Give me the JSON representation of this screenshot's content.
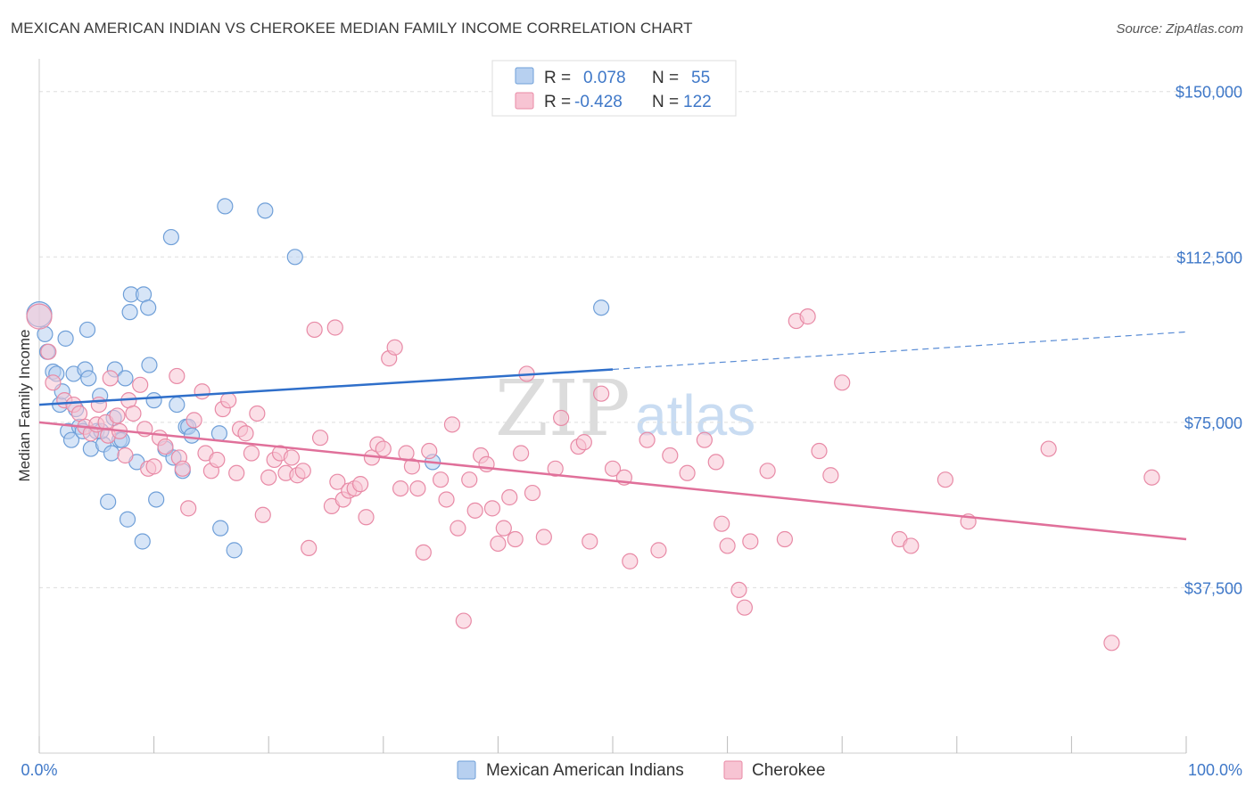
{
  "title": "MEXICAN AMERICAN INDIAN VS CHEROKEE MEDIAN FAMILY INCOME CORRELATION CHART",
  "source": "Source: ZipAtlas.com",
  "watermark": {
    "zip": "ZIP",
    "atlas": "atlas"
  },
  "colors": {
    "blue_fill": "#b7d0f0",
    "blue_stroke": "#6f9fd8",
    "blue_line": "#2f6fca",
    "pink_fill": "#f7c4d3",
    "pink_stroke": "#e88aa6",
    "pink_line": "#e0709a",
    "grid": "#dddddd",
    "axis_text": "#3f78c8"
  },
  "legend": {
    "r_label": "R =",
    "n_label": "N =",
    "blue": {
      "r": "0.078",
      "n": "55"
    },
    "pink": {
      "r": "-0.428",
      "n": "122"
    }
  },
  "chart_data": {
    "type": "scatter",
    "title": "MEXICAN AMERICAN INDIAN VS CHEROKEE MEDIAN FAMILY INCOME CORRELATION CHART",
    "xlabel": "",
    "ylabel": "Median Family Income",
    "xlim": [
      0,
      100
    ],
    "ylim": [
      0,
      155000
    ],
    "x_tick_labels": [
      "0.0%",
      "100.0%"
    ],
    "y_ticks": [
      37500,
      75000,
      112500,
      150000
    ],
    "y_tick_labels": [
      "$37,500",
      "$75,000",
      "$112,500",
      "$150,000"
    ],
    "series": [
      {
        "name": "Mexican American Indians",
        "color": "blue",
        "trend": {
          "x0": 0,
          "y0": 79000,
          "x1": 50,
          "y1": 87000,
          "dash_to_x": 100,
          "dash_to_y": 95500
        },
        "points": [
          [
            0,
            99500
          ],
          [
            0.5,
            95000
          ],
          [
            0.7,
            91000
          ],
          [
            1.2,
            86500
          ],
          [
            1.5,
            86000
          ],
          [
            1.8,
            79000
          ],
          [
            2.0,
            82000
          ],
          [
            2.3,
            94000
          ],
          [
            2.5,
            73000
          ],
          [
            2.8,
            71000
          ],
          [
            3.0,
            86000
          ],
          [
            3.2,
            78000
          ],
          [
            3.5,
            74000
          ],
          [
            3.8,
            73000
          ],
          [
            4.0,
            87000
          ],
          [
            4.2,
            96000
          ],
          [
            4.3,
            85000
          ],
          [
            4.5,
            69000
          ],
          [
            5.0,
            73000
          ],
          [
            5.3,
            81000
          ],
          [
            5.6,
            70000
          ],
          [
            6.0,
            57000
          ],
          [
            6.3,
            68000
          ],
          [
            6.5,
            76000
          ],
          [
            6.6,
            87000
          ],
          [
            7.0,
            71000
          ],
          [
            7.2,
            71000
          ],
          [
            7.5,
            85000
          ],
          [
            7.7,
            53000
          ],
          [
            7.9,
            100000
          ],
          [
            8.0,
            104000
          ],
          [
            8.5,
            66000
          ],
          [
            9.0,
            48000
          ],
          [
            9.1,
            104000
          ],
          [
            9.5,
            101000
          ],
          [
            9.6,
            88000
          ],
          [
            10.0,
            80000
          ],
          [
            10.2,
            57500
          ],
          [
            11.0,
            69000
          ],
          [
            11.5,
            117000
          ],
          [
            11.7,
            67000
          ],
          [
            12.0,
            79000
          ],
          [
            12.5,
            64000
          ],
          [
            12.8,
            74000
          ],
          [
            13.0,
            74000
          ],
          [
            13.3,
            72000
          ],
          [
            15.7,
            72500
          ],
          [
            15.8,
            51000
          ],
          [
            16.2,
            124000
          ],
          [
            17.0,
            46000
          ],
          [
            19.7,
            123000
          ],
          [
            22.3,
            112500
          ],
          [
            34.3,
            66000
          ],
          [
            49.0,
            101000
          ],
          [
            5.4,
            73000
          ]
        ]
      },
      {
        "name": "Cherokee",
        "color": "pink",
        "trend": {
          "x0": 0,
          "y0": 75000,
          "x1": 100,
          "y1": 48500
        },
        "points": [
          [
            0,
            99000
          ],
          [
            0.8,
            91000
          ],
          [
            1.2,
            84000
          ],
          [
            2.2,
            80000
          ],
          [
            3.0,
            79000
          ],
          [
            3.5,
            77000
          ],
          [
            4.0,
            74000
          ],
          [
            4.5,
            72500
          ],
          [
            5.0,
            74500
          ],
          [
            5.2,
            79000
          ],
          [
            5.8,
            75000
          ],
          [
            6.0,
            72000
          ],
          [
            6.2,
            85000
          ],
          [
            6.8,
            76500
          ],
          [
            7.0,
            73000
          ],
          [
            7.5,
            67500
          ],
          [
            7.8,
            80000
          ],
          [
            8.2,
            77000
          ],
          [
            8.8,
            83500
          ],
          [
            9.2,
            73500
          ],
          [
            9.5,
            64500
          ],
          [
            10.0,
            65000
          ],
          [
            10.5,
            71500
          ],
          [
            11.0,
            69500
          ],
          [
            12.0,
            85500
          ],
          [
            12.2,
            67000
          ],
          [
            12.5,
            64500
          ],
          [
            13.0,
            55500
          ],
          [
            13.5,
            75500
          ],
          [
            14.2,
            82000
          ],
          [
            14.5,
            68000
          ],
          [
            15.0,
            64000
          ],
          [
            15.5,
            66500
          ],
          [
            16.0,
            78000
          ],
          [
            16.5,
            80000
          ],
          [
            17.2,
            63500
          ],
          [
            17.5,
            73500
          ],
          [
            18.0,
            72500
          ],
          [
            18.5,
            68000
          ],
          [
            19.0,
            77000
          ],
          [
            19.5,
            54000
          ],
          [
            20.0,
            62500
          ],
          [
            20.5,
            66500
          ],
          [
            21.0,
            68000
          ],
          [
            21.5,
            63500
          ],
          [
            22.0,
            67000
          ],
          [
            22.5,
            63000
          ],
          [
            23.0,
            64000
          ],
          [
            23.5,
            46500
          ],
          [
            24.0,
            96000
          ],
          [
            24.5,
            71500
          ],
          [
            25.5,
            56000
          ],
          [
            25.8,
            96500
          ],
          [
            26.0,
            61500
          ],
          [
            26.5,
            57500
          ],
          [
            27.0,
            59500
          ],
          [
            27.5,
            60000
          ],
          [
            28.0,
            61000
          ],
          [
            28.5,
            53500
          ],
          [
            29.0,
            67000
          ],
          [
            29.5,
            70000
          ],
          [
            30.0,
            69000
          ],
          [
            30.5,
            89500
          ],
          [
            31.0,
            92000
          ],
          [
            31.5,
            60000
          ],
          [
            32.0,
            68000
          ],
          [
            32.5,
            65000
          ],
          [
            33.0,
            60000
          ],
          [
            33.5,
            45500
          ],
          [
            34.0,
            68500
          ],
          [
            35.0,
            62000
          ],
          [
            35.5,
            57500
          ],
          [
            36.0,
            74500
          ],
          [
            36.5,
            51000
          ],
          [
            37.0,
            30000
          ],
          [
            37.5,
            62000
          ],
          [
            38.0,
            55000
          ],
          [
            38.5,
            67500
          ],
          [
            39.0,
            65500
          ],
          [
            39.5,
            55500
          ],
          [
            40.0,
            47500
          ],
          [
            40.5,
            51000
          ],
          [
            41.0,
            58000
          ],
          [
            41.5,
            48500
          ],
          [
            42.0,
            68000
          ],
          [
            42.5,
            86000
          ],
          [
            43.0,
            59000
          ],
          [
            44.0,
            49000
          ],
          [
            45.0,
            64500
          ],
          [
            45.5,
            76000
          ],
          [
            47.0,
            69500
          ],
          [
            47.5,
            70500
          ],
          [
            48.0,
            48000
          ],
          [
            49.0,
            81500
          ],
          [
            50.0,
            64500
          ],
          [
            51.0,
            62500
          ],
          [
            51.5,
            43500
          ],
          [
            53.0,
            71000
          ],
          [
            54.0,
            46000
          ],
          [
            55.0,
            67500
          ],
          [
            56.5,
            63500
          ],
          [
            58.0,
            71000
          ],
          [
            59.0,
            66000
          ],
          [
            59.5,
            52000
          ],
          [
            60.0,
            47000
          ],
          [
            61.0,
            37000
          ],
          [
            61.5,
            33000
          ],
          [
            62.0,
            48000
          ],
          [
            63.5,
            64000
          ],
          [
            65.0,
            48500
          ],
          [
            66.0,
            98000
          ],
          [
            67.0,
            99000
          ],
          [
            68.0,
            68500
          ],
          [
            69.0,
            63000
          ],
          [
            70.0,
            84000
          ],
          [
            75.0,
            48500
          ],
          [
            76.0,
            47000
          ],
          [
            79.0,
            62000
          ],
          [
            81.0,
            52500
          ],
          [
            88.0,
            69000
          ],
          [
            93.5,
            25000
          ],
          [
            97.0,
            62500
          ]
        ]
      }
    ]
  },
  "bottom_legend": [
    {
      "label": "Mexican American Indians",
      "color": "blue"
    },
    {
      "label": "Cherokee",
      "color": "pink"
    }
  ]
}
